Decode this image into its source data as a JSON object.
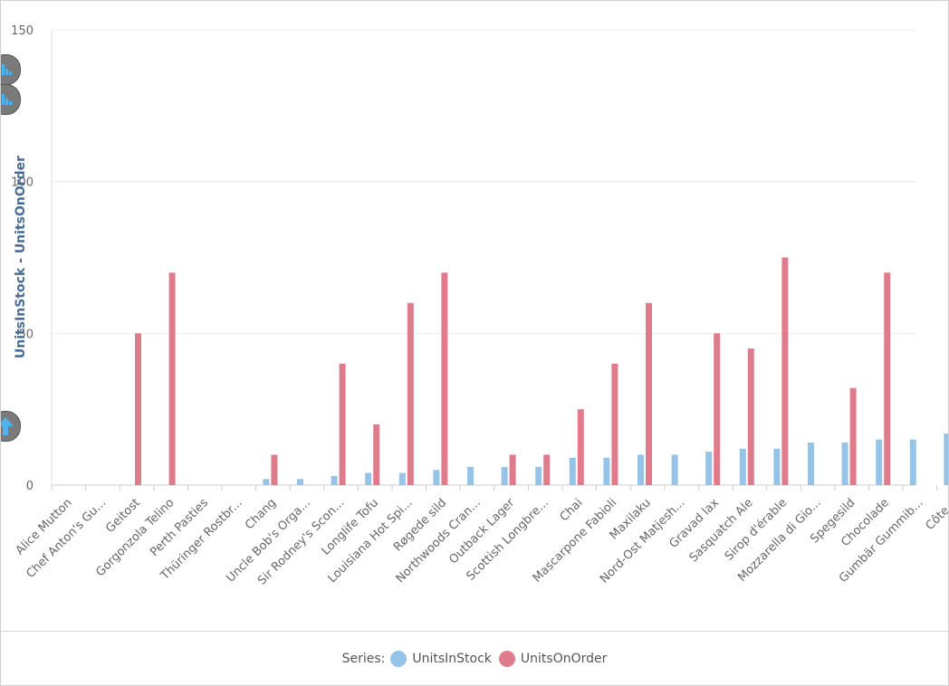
{
  "chart_data": {
    "type": "bar",
    "title": "",
    "xlabel": "",
    "ylabel": "UnitsInStock  -  UnitsOnOrder",
    "ylim": [
      0,
      150
    ],
    "yticks": [
      0,
      50,
      100,
      150
    ],
    "grid": true,
    "legend_placement": "bottom-center",
    "categories": [
      "Alice Mutton",
      "Chef Anton's Gu...",
      "Geitost",
      "Gorgonzola Telino",
      "Perth Pasties",
      "Thüringer Rostbr...",
      "Chang",
      "Uncle Bob's Orga...",
      "Sir Rodney's Scon...",
      "Longlife Tofu",
      "Louisiana Hot Spi...",
      "Røgede sild",
      "Northwoods Cran...",
      "Outback Lager",
      "Scottish Longbre...",
      "Chai",
      "Mascarpone Fabioli",
      "Maxilaku",
      "Nord-Ost Matjesh...",
      "Gravad lax",
      "Sasquatch Ale",
      "Sirop d'érable",
      "Mozzarella di Gio...",
      "Spegesild",
      "Chocolade",
      "Gumbär Gummib...",
      "Côte..."
    ],
    "series": [
      {
        "name": "UnitsInStock",
        "color": "#95c4e8",
        "values": [
          0,
          0,
          0,
          0,
          0,
          0,
          2,
          2,
          3,
          4,
          4,
          5,
          6,
          6,
          6,
          9,
          9,
          10,
          10,
          11,
          12,
          12,
          14,
          14,
          15,
          15,
          17
        ]
      },
      {
        "name": "UnitsOnOrder",
        "color": "#e07b8b",
        "values": [
          0,
          0,
          50,
          70,
          0,
          0,
          10,
          0,
          40,
          20,
          60,
          70,
          0,
          10,
          10,
          25,
          40,
          60,
          0,
          50,
          45,
          75,
          0,
          32,
          70,
          0,
          0
        ]
      }
    ]
  },
  "legend": {
    "label": "Series:"
  }
}
